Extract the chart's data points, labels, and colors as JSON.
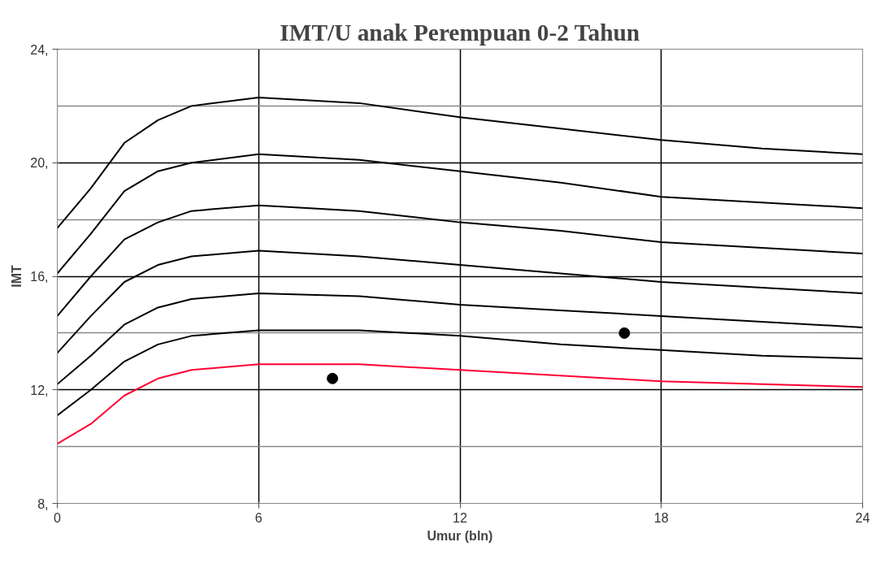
{
  "chart_data": {
    "type": "line",
    "title": "IMT/U anak Perempuan 0-2 Tahun",
    "xlabel": "Umur (bln)",
    "ylabel": "IMT",
    "x": [
      0,
      1,
      2,
      3,
      4,
      6,
      9,
      12,
      15,
      18,
      21,
      24
    ],
    "series": [
      {
        "color": "#000000",
        "values": [
          17.7,
          19.1,
          20.7,
          21.5,
          22.0,
          22.3,
          22.1,
          21.6,
          21.2,
          20.8,
          20.5,
          20.3
        ]
      },
      {
        "color": "#000000",
        "values": [
          16.1,
          17.5,
          19.0,
          19.7,
          20.0,
          20.3,
          20.1,
          19.7,
          19.3,
          18.8,
          18.6,
          18.4
        ]
      },
      {
        "color": "#000000",
        "values": [
          14.6,
          16.0,
          17.3,
          17.9,
          18.3,
          18.5,
          18.3,
          17.9,
          17.6,
          17.2,
          17.0,
          16.8
        ]
      },
      {
        "color": "#000000",
        "values": [
          13.3,
          14.6,
          15.8,
          16.4,
          16.7,
          16.9,
          16.7,
          16.4,
          16.1,
          15.8,
          15.6,
          15.4
        ]
      },
      {
        "color": "#000000",
        "values": [
          12.2,
          13.2,
          14.3,
          14.9,
          15.2,
          15.4,
          15.3,
          15.0,
          14.8,
          14.6,
          14.4,
          14.2
        ]
      },
      {
        "color": "#000000",
        "values": [
          11.1,
          12.0,
          13.0,
          13.6,
          13.9,
          14.1,
          14.1,
          13.9,
          13.6,
          13.4,
          13.2,
          13.1
        ]
      },
      {
        "color": "#ff0033",
        "values": [
          10.1,
          10.8,
          11.8,
          12.4,
          12.7,
          12.9,
          12.9,
          12.7,
          12.5,
          12.3,
          12.2,
          12.1
        ]
      },
      {
        "type": "scatter",
        "color": "#000000",
        "x": [
          8.2,
          16.9
        ],
        "values": [
          12.4,
          14.0
        ],
        "marker": "circle"
      }
    ],
    "xlim": [
      0,
      24
    ],
    "xticks": [
      0,
      6,
      12,
      18,
      24
    ],
    "ylim": [
      8,
      24
    ],
    "yticks": [
      {
        "value": 8,
        "label": "8,"
      },
      {
        "value": 12,
        "label": "12,"
      },
      {
        "value": 16,
        "label": "16,"
      },
      {
        "value": 20,
        "label": "20,"
      },
      {
        "value": 24,
        "label": "24,"
      }
    ],
    "grid": true,
    "marker": "none",
    "line_style": "solid"
  }
}
